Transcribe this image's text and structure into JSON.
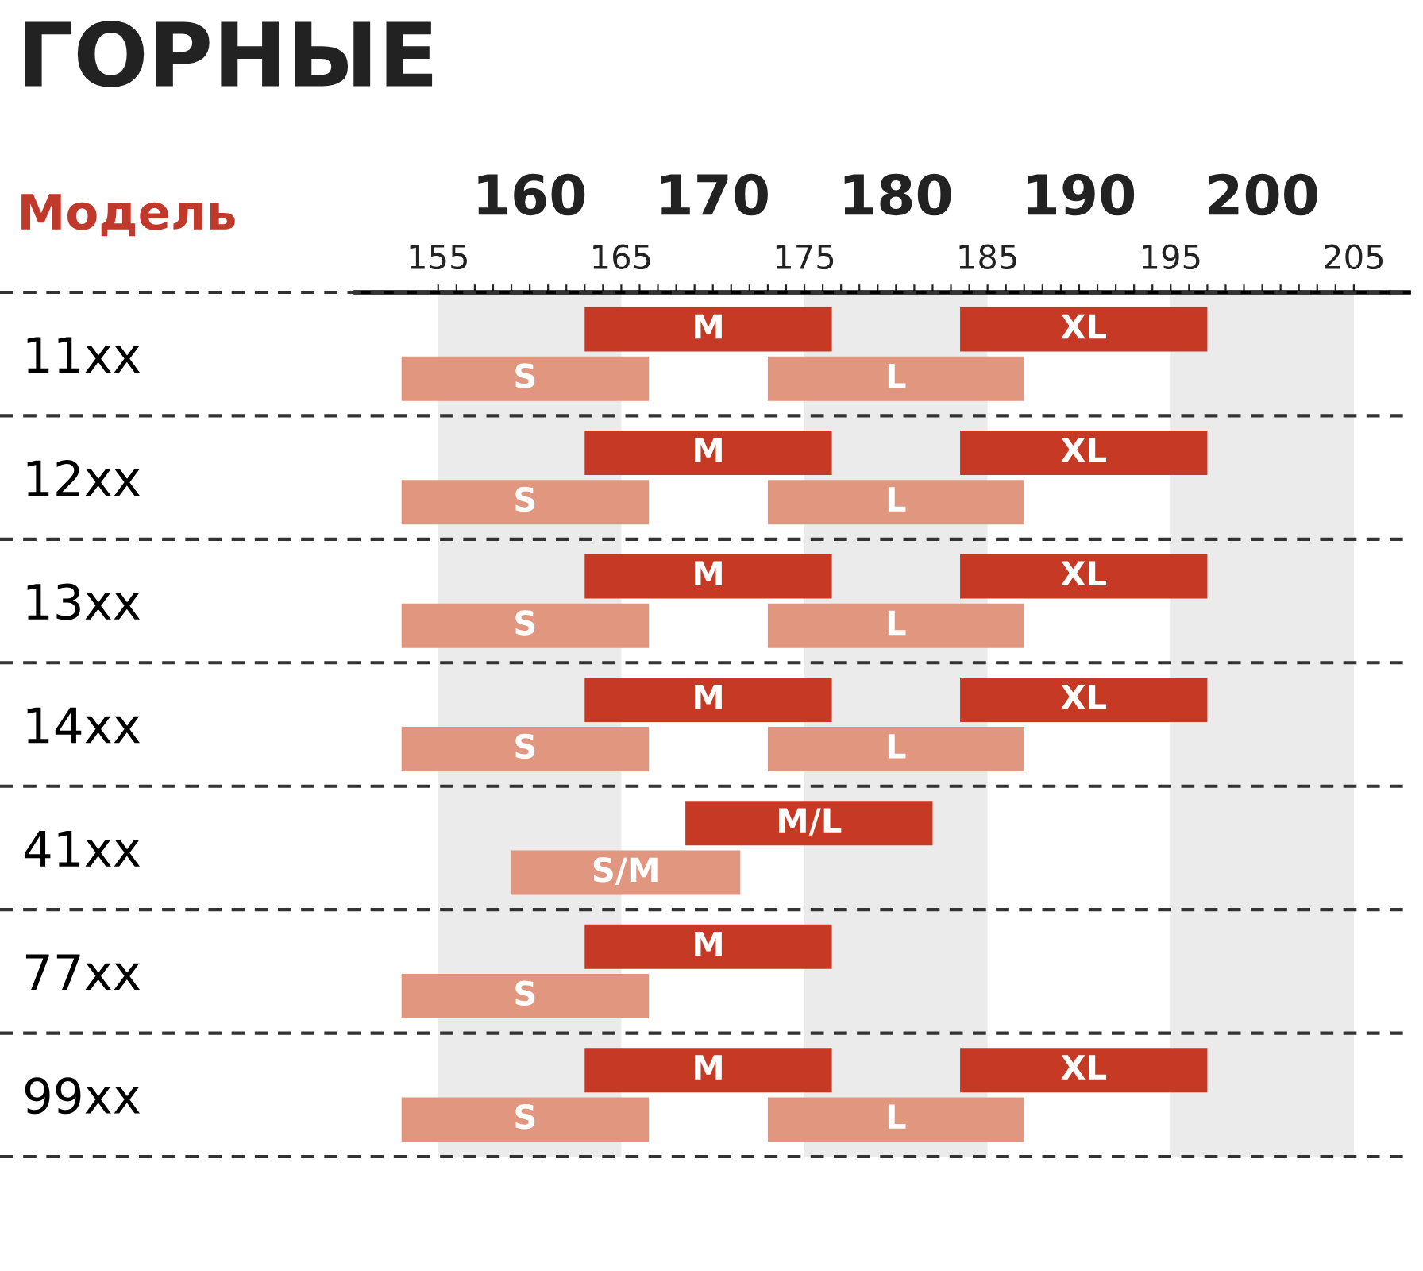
{
  "chart_data": {
    "type": "bar",
    "orientation": "horizontal",
    "title": "ГОРНЫЕ",
    "ylabel": "Модель",
    "categories": [
      "11xx",
      "12xx",
      "13xx",
      "14xx",
      "41xx",
      "77xx",
      "99xx"
    ],
    "series": [
      {
        "name": "S",
        "color": "#e0967f",
        "base": [
          153,
          153,
          153,
          153,
          null,
          153,
          153
        ],
        "values": [
          13.5,
          13.5,
          13.5,
          13.5,
          null,
          13.5,
          13.5
        ]
      },
      {
        "name": "M",
        "color": "#c63a25",
        "base": [
          163,
          163,
          163,
          163,
          null,
          163,
          163
        ],
        "values": [
          13.5,
          13.5,
          13.5,
          13.5,
          null,
          13.5,
          13.5
        ]
      },
      {
        "name": "L",
        "color": "#e0967f",
        "base": [
          173,
          173,
          173,
          173,
          null,
          null,
          173
        ],
        "values": [
          14,
          14,
          14,
          14,
          null,
          null,
          14
        ]
      },
      {
        "name": "XL",
        "color": "#c63a25",
        "base": [
          183.5,
          183.5,
          183.5,
          183.5,
          null,
          null,
          183.5
        ],
        "values": [
          13.5,
          13.5,
          13.5,
          13.5,
          null,
          null,
          13.5
        ]
      },
      {
        "name": "S/M",
        "color": "#e0967f",
        "base": [
          null,
          null,
          null,
          null,
          159,
          null,
          null
        ],
        "values": [
          null,
          null,
          null,
          null,
          12.5,
          null,
          null
        ]
      },
      {
        "name": "M/L",
        "color": "#c63a25",
        "base": [
          null,
          null,
          null,
          null,
          168.5,
          null,
          null
        ],
        "values": [
          null,
          null,
          null,
          null,
          13.5,
          null,
          null
        ]
      }
    ],
    "xlim": [
      150.5,
      208
    ],
    "x2lim": [
      150.5,
      208
    ],
    "x2ticks": [
      160,
      170,
      180,
      190,
      200
    ],
    "xticks": [
      155,
      {
        "value": 156,
        "label": null
      },
      {
        "value": 157,
        "label": null
      },
      {
        "value": 158,
        "label": null
      },
      {
        "value": 159,
        "label": null
      },
      {
        "value": 160,
        "label": null
      },
      {
        "value": 161,
        "label": null
      },
      {
        "value": 162,
        "label": null
      },
      {
        "value": 163,
        "label": null
      },
      {
        "value": 164,
        "label": null
      },
      165,
      {
        "value": 166,
        "label": null
      },
      {
        "value": 167,
        "label": null
      },
      {
        "value": 168,
        "label": null
      },
      {
        "value": 169,
        "label": null
      },
      {
        "value": 170,
        "label": null
      },
      {
        "value": 171,
        "label": null
      },
      {
        "value": 172,
        "label": null
      },
      {
        "value": 173,
        "label": null
      },
      {
        "value": 174,
        "label": null
      },
      175,
      {
        "value": 176,
        "label": null
      },
      {
        "value": 177,
        "label": null
      },
      {
        "value": 178,
        "label": null
      },
      {
        "value": 179,
        "label": null
      },
      {
        "value": 180,
        "label": null
      },
      {
        "value": 181,
        "label": null
      },
      {
        "value": 182,
        "label": null
      },
      {
        "value": 183,
        "label": null
      },
      {
        "value": 184,
        "label": null
      },
      185,
      {
        "value": 186,
        "label": null
      },
      {
        "value": 187,
        "label": null
      },
      {
        "value": 188,
        "label": null
      },
      {
        "value": 189,
        "label": null
      },
      {
        "value": 190,
        "label": null
      },
      {
        "value": 191,
        "label": null
      },
      {
        "value": 192,
        "label": null
      },
      {
        "value": 193,
        "label": null
      },
      {
        "value": 194,
        "label": null
      },
      195,
      {
        "value": 196,
        "label": null
      },
      {
        "value": 197,
        "label": null
      },
      {
        "value": 198,
        "label": null
      },
      {
        "value": 199,
        "label": null
      },
      {
        "value": 200,
        "label": null
      },
      {
        "value": 201,
        "label": null
      },
      {
        "value": 202,
        "label": null
      },
      {
        "value": 203,
        "label": null
      },
      {
        "value": 204,
        "label": null
      },
      205
    ],
    "bands": [
      {
        "axis": "x",
        "from": 155,
        "to": 165,
        "color": "#ebebeb"
      },
      {
        "axis": "x",
        "from": 175,
        "to": 185,
        "color": "#ebebeb"
      },
      {
        "axis": "x",
        "from": 195,
        "to": 205,
        "color": "#ebebeb"
      }
    ],
    "legend": false,
    "grid": false
  }
}
